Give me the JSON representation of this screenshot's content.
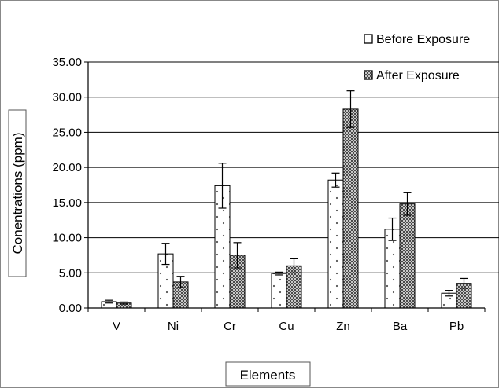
{
  "chart_data": {
    "type": "bar",
    "title": "",
    "xlabel": "Elements",
    "ylabel": "Conentrations (ppm)",
    "categories": [
      "V",
      "Ni",
      "Cr",
      "Cu",
      "Zn",
      "Ba",
      "Pb"
    ],
    "ylim": [
      0,
      35
    ],
    "yticks": [
      "0.00",
      "5.00",
      "10.00",
      "15.00",
      "20.00",
      "25.00",
      "30.00",
      "35.00"
    ],
    "grid": "horizontal major gridlines",
    "legend_position": "top-right",
    "series": [
      {
        "name": "Before Exposure",
        "pattern": "white with sparse dots",
        "values": [
          0.9,
          7.7,
          17.4,
          4.9,
          18.2,
          11.2,
          2.1
        ],
        "errors": [
          0.2,
          1.5,
          3.2,
          0.2,
          1.0,
          1.6,
          0.4
        ]
      },
      {
        "name": "After Exposure",
        "pattern": "dense dark checker",
        "values": [
          0.7,
          3.7,
          7.5,
          6.0,
          28.3,
          14.8,
          3.5
        ],
        "errors": [
          0.15,
          0.8,
          1.8,
          1.0,
          2.6,
          1.6,
          0.7
        ]
      }
    ],
    "colors": {
      "bar_outline": "#000000",
      "grid": "#000000",
      "background": "#ffffff"
    }
  }
}
